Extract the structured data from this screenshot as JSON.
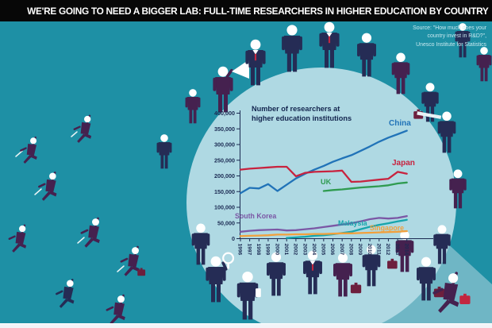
{
  "header": {
    "title": "WE'RE GOING TO NEED A BIGGER LAB: FULL-TIME RESEARCHERS IN HIGHER EDUCATION BY COUNTRY"
  },
  "source": {
    "line1": "Source: \"How much does your",
    "line2": "country invest in R&D?\",",
    "line3": "Unesco Institute for Statistics"
  },
  "colors": {
    "background_teal": "#1E90A5",
    "circle_light_blue": "#AFD9E3",
    "beam_light_teal": "#6FB6C5",
    "header_bar": "#070707",
    "person_navy": "#252C55",
    "person_purple": "#45214F",
    "accent_red": "#C22740",
    "axis_navy": "#1B2A52",
    "footer_strip": "#F3F4F8"
  },
  "chart_data": {
    "type": "line",
    "title_line1": "Number of researchers at",
    "title_line2": "higher education institutions",
    "x": [
      1996,
      1997,
      1998,
      1999,
      2000,
      2001,
      2002,
      2003,
      2004,
      2005,
      2006,
      2007,
      2008,
      2009,
      2010,
      2011,
      2012,
      2013,
      2014
    ],
    "y_ticks": [
      "400,000",
      "350,000",
      "300,000",
      "250,000",
      "200,000",
      "150,000",
      "100,000",
      "50,000",
      "0"
    ],
    "ylim": [
      0,
      400000
    ],
    "grid": false,
    "legend_position": "inline-labels",
    "series": [
      {
        "name": "China",
        "color": "#2173B8",
        "start_year": 1996,
        "values": [
          145000,
          162000,
          160000,
          174000,
          152000,
          172000,
          192000,
          207000,
          220000,
          232000,
          245000,
          256000,
          266000,
          280000,
          294000,
          309000,
          322000,
          333000,
          344000
        ]
      },
      {
        "name": "Japan",
        "color": "#C8233F",
        "start_year": 1996,
        "values": [
          220000,
          223000,
          225000,
          227000,
          229000,
          229000,
          199000,
          210000,
          213000,
          214000,
          215000,
          217000,
          181000,
          182000,
          185000,
          188000,
          191000,
          213000,
          207000
        ]
      },
      {
        "name": "UK",
        "color": "#2F9B50",
        "start_year": 2005,
        "values": [
          152000,
          155000,
          157000,
          160000,
          163000,
          165000,
          167000,
          170000,
          176000,
          179000
        ]
      },
      {
        "name": "South Korea",
        "color": "#7B57A5",
        "start_year": 1996,
        "values": [
          22000,
          25000,
          27000,
          28000,
          29000,
          26000,
          27000,
          30000,
          33000,
          37000,
          41000,
          45000,
          49000,
          55000,
          62000,
          66000,
          64000,
          66000,
          72000
        ]
      },
      {
        "name": "Malaysia",
        "color": "#16A5AC",
        "start_year": 2001,
        "values": [
          2000,
          4000,
          6000,
          9000,
          11000,
          14000,
          18000,
          22000,
          30000,
          38000,
          44000,
          49000,
          55000,
          60000
        ]
      },
      {
        "name": "Singapore",
        "color": "#F2A03C",
        "start_year": 1996,
        "values": [
          8000,
          9000,
          10000,
          11000,
          13000,
          13000,
          14000,
          14000,
          15000,
          15000,
          16000,
          17000,
          17000,
          18000,
          19000,
          20000,
          21000,
          22000,
          24000
        ]
      }
    ]
  }
}
